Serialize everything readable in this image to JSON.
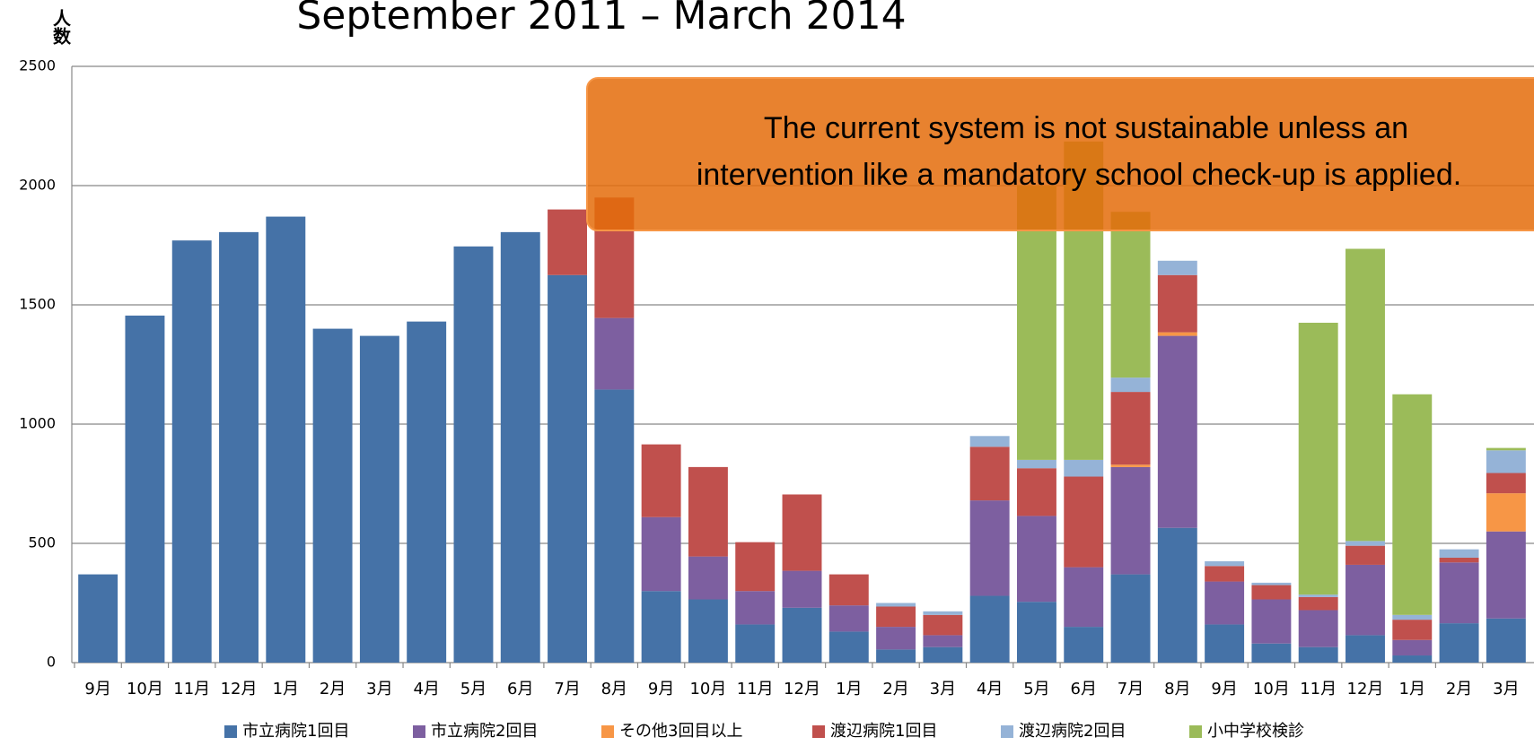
{
  "chart_data": {
    "type": "stacked_bar",
    "title": "September 2011 – March 2014",
    "y_label": "人数",
    "annotation": [
      "The current system is not sustainable unless an",
      "intervention like a mandatory school check-up  is applied."
    ],
    "categories": [
      "9月",
      "10月",
      "11月",
      "12月",
      "1月",
      "2月",
      "3月",
      "4月",
      "5月",
      "6月",
      "7月",
      "8月",
      "9月",
      "10月",
      "11月",
      "12月",
      "1月",
      "2月",
      "3月",
      "4月",
      "5月",
      "6月",
      "7月",
      "8月",
      "9月",
      "10月",
      "11月",
      "12月",
      "1月",
      "2月",
      "3月"
    ],
    "ylim": [
      0,
      2500
    ],
    "yticks": [
      0,
      500,
      1000,
      1500,
      2000,
      2500
    ],
    "grid": true,
    "legend": "bottom",
    "series": [
      {
        "name": "市立病院1回目",
        "color": "#4572a7",
        "values": [
          370,
          1455,
          1770,
          1805,
          1870,
          1400,
          1370,
          1430,
          1745,
          1805,
          1625,
          1145,
          300,
          265,
          160,
          230,
          130,
          55,
          65,
          280,
          255,
          150,
          370,
          565,
          160,
          80,
          65,
          115,
          30,
          165,
          185
        ]
      },
      {
        "name": "市立病院2回目",
        "color": "#7d5fa0",
        "values": [
          0,
          0,
          0,
          0,
          0,
          0,
          0,
          0,
          0,
          0,
          0,
          300,
          310,
          180,
          140,
          155,
          110,
          95,
          50,
          400,
          360,
          250,
          450,
          805,
          180,
          185,
          155,
          295,
          65,
          255,
          365
        ]
      },
      {
        "name": "その他3回目以上",
        "color": "#f79646",
        "values": [
          0,
          0,
          0,
          0,
          0,
          0,
          0,
          0,
          0,
          0,
          0,
          0,
          0,
          0,
          0,
          0,
          0,
          0,
          0,
          0,
          0,
          0,
          10,
          15,
          0,
          0,
          0,
          0,
          0,
          0,
          160
        ]
      },
      {
        "name": "渡辺病院1回目",
        "color": "#c0504d",
        "values": [
          0,
          0,
          0,
          0,
          0,
          0,
          0,
          0,
          0,
          0,
          275,
          505,
          305,
          375,
          205,
          320,
          130,
          85,
          85,
          225,
          200,
          380,
          305,
          240,
          65,
          60,
          55,
          80,
          85,
          20,
          85
        ]
      },
      {
        "name": "渡辺病院2回目",
        "color": "#95b3d7",
        "values": [
          0,
          0,
          0,
          0,
          0,
          0,
          0,
          0,
          0,
          0,
          0,
          0,
          0,
          0,
          0,
          0,
          0,
          15,
          15,
          45,
          35,
          70,
          60,
          60,
          20,
          10,
          10,
          20,
          20,
          35,
          95
        ]
      },
      {
        "name": "小中学校検診",
        "color": "#9bbb59",
        "values": [
          0,
          0,
          0,
          0,
          0,
          0,
          0,
          0,
          0,
          0,
          0,
          0,
          0,
          0,
          0,
          0,
          0,
          0,
          0,
          0,
          1150,
          1335,
          695,
          0,
          0,
          0,
          1140,
          1225,
          925,
          0,
          10
        ]
      }
    ]
  }
}
